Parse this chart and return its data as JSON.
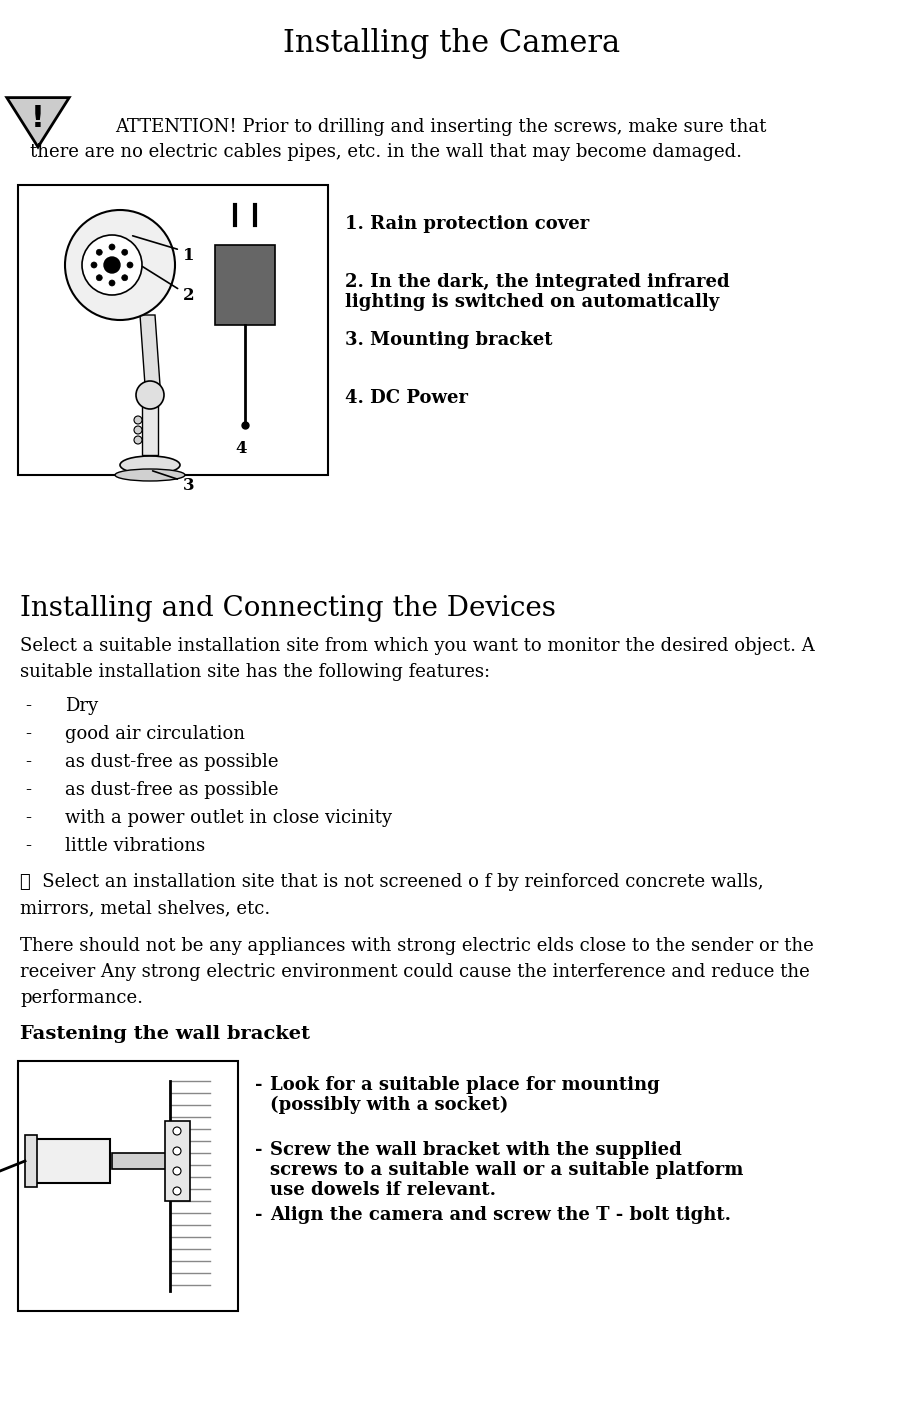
{
  "title": "Installing the Camera",
  "title_fontsize": 22,
  "background_color": "#ffffff",
  "text_color": "#000000",
  "attention_text_line1": "ATTENTION! Prior to drilling and inserting the screws, make sure that",
  "attention_text_line2": "there are no electric cables pipes, etc. in the wall that may become damaged.",
  "section2_title": "Installing and Connecting the Devices",
  "section2_title_fontsize": 20,
  "section2_body1": "Select a suitable installation site from which you want to monitor the desired object. A",
  "section2_body2": "suitable installation site has the following features:",
  "bullet_items": [
    "Dry",
    "good air circulation",
    "as dust-free as possible",
    "as dust-free as possible",
    "with a power outlet in close vicinity",
    "little vibrations"
  ],
  "note_text_line1": "☞  Select an installation site that is not screened o f by reinforced concrete walls,",
  "note_text_line2": "mirrors, metal shelves, etc.",
  "para_text1": "There should not be any appliances with strong electric elds close to the sender or the",
  "para_text2": "receiver Any strong electric environment could cause the interference and reduce the",
  "para_text3": "performance.",
  "fastening_title": "Fastening the wall bracket",
  "bullet2_items": [
    "Look for a suitable place for mounting\n(possibly with a socket)",
    "Screw the wall bracket with the supplied\nscrews to a suitable wall or a suitable platform\nuse dowels if relevant.",
    "Align the camera and screw the T - bolt tight."
  ],
  "diagram_labels": [
    {
      "num": "1",
      "text": "1. Rain protection cover"
    },
    {
      "num": "2",
      "text": "2. In the dark, the integrated infrared\nlighting is switched on automatically"
    },
    {
      "num": "3",
      "text": "3. Mounting bracket"
    },
    {
      "num": "4",
      "text": "4. DC Power"
    }
  ],
  "body_fontsize": 13,
  "label_fontsize": 13,
  "bullet_fontsize": 13
}
